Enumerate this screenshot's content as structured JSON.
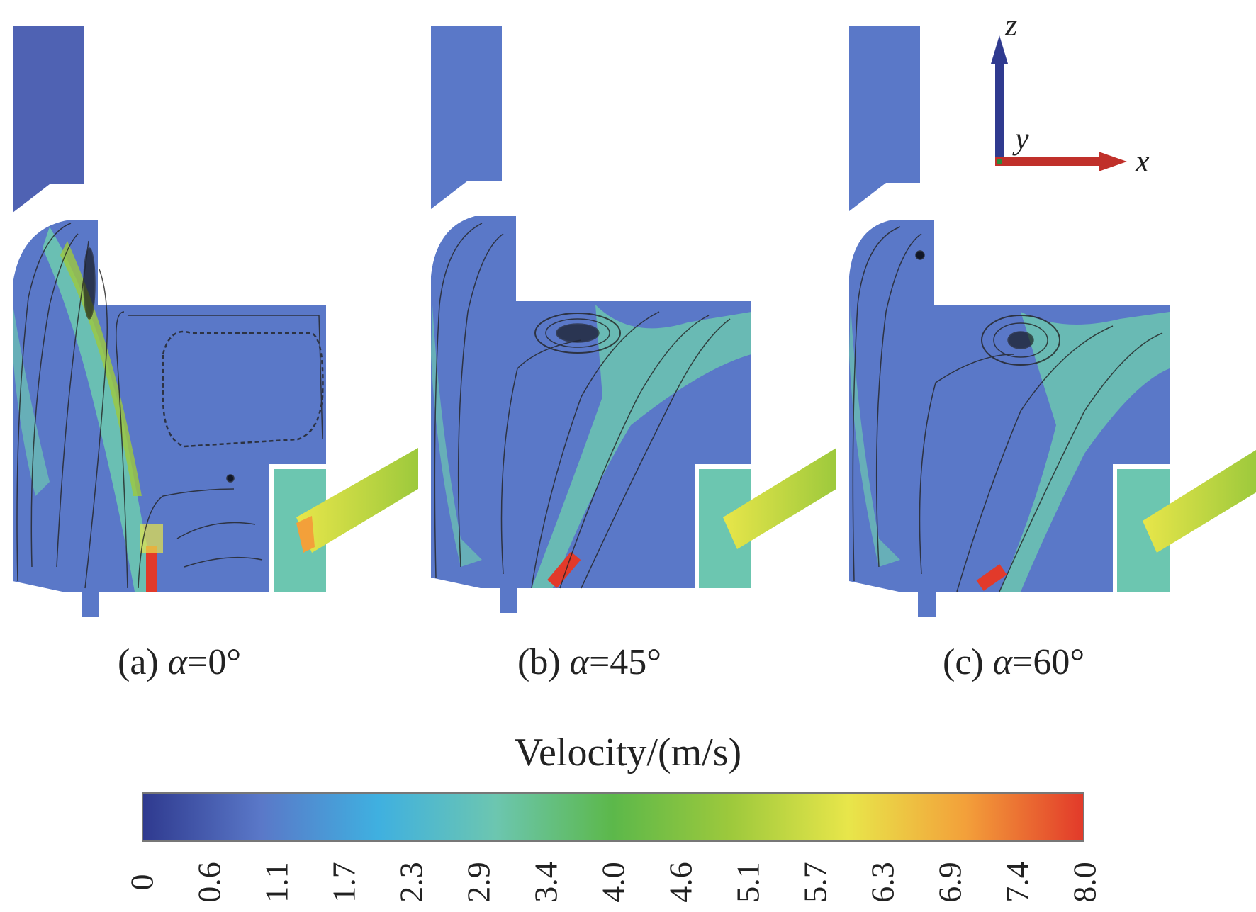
{
  "figure": {
    "panels": [
      {
        "letter": "(a)",
        "alpha_symbol": "α",
        "value": "=0°"
      },
      {
        "letter": "(b)",
        "alpha_symbol": "α",
        "value": "=45°"
      },
      {
        "letter": "(c)",
        "alpha_symbol": "α",
        "value": "=60°"
      }
    ],
    "axes": {
      "z": "z",
      "y": "y",
      "x": "x"
    },
    "colorbar": {
      "title": "Velocity/(m/s)",
      "ticks": [
        "0",
        "0.6",
        "1.1",
        "1.7",
        "2.3",
        "2.9",
        "3.4",
        "4.0",
        "4.6",
        "5.1",
        "5.7",
        "6.3",
        "6.9",
        "7.4",
        "8.0"
      ],
      "colors": [
        "#2f3a8f",
        "#5a78c8",
        "#3fb0e0",
        "#6cc6b0",
        "#5cb84a",
        "#9dc93c",
        "#e8e64a",
        "#f3a03a",
        "#e23a2a"
      ]
    }
  }
}
